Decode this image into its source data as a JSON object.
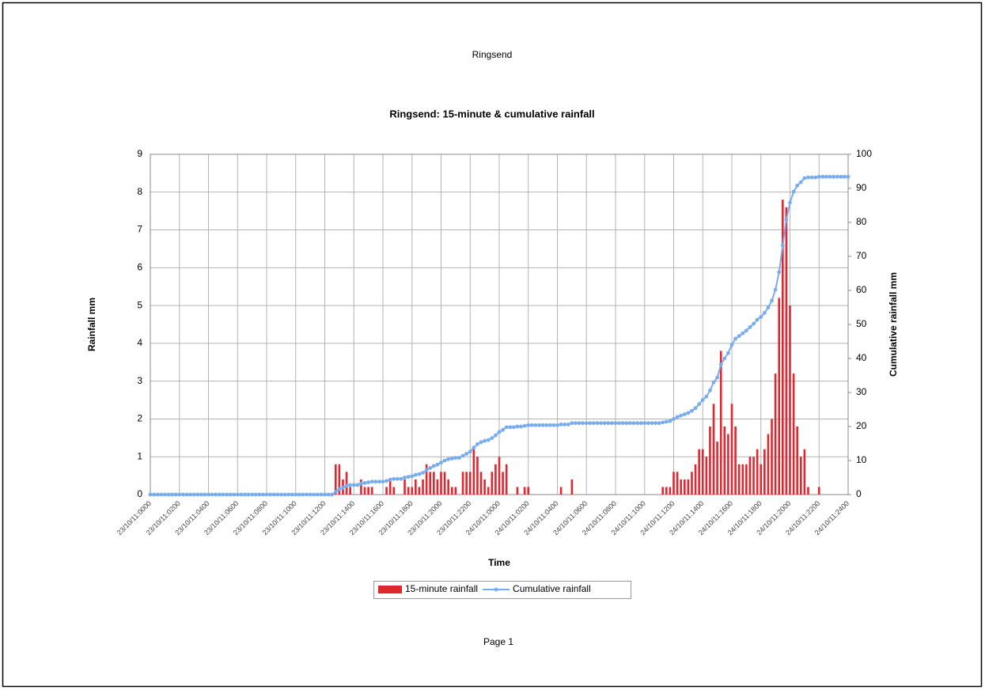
{
  "header": "Ringsend",
  "footer": "Page 1",
  "chart_data": {
    "type": "bar",
    "title": "Ringsend: 15-minute & cumulative rainfall",
    "x_label": "Time",
    "y_label": "Rainfall mm",
    "y2_label": "Cumulative rainfall mm",
    "ylim": [
      0,
      9
    ],
    "yticks": [
      0,
      1,
      2,
      3,
      4,
      5,
      6,
      7,
      8,
      9
    ],
    "y2lim": [
      0,
      100
    ],
    "y2ticks": [
      0,
      10,
      20,
      30,
      40,
      50,
      60,
      70,
      80,
      90,
      100
    ],
    "grid": true,
    "legend": "bottom",
    "categories": [
      "23/10/11:0000",
      null,
      null,
      null,
      null,
      null,
      null,
      null,
      "23/10/11:0200",
      null,
      null,
      null,
      null,
      null,
      null,
      null,
      "23/10/11:0400",
      null,
      null,
      null,
      null,
      null,
      null,
      null,
      "23/10/11:0600",
      null,
      null,
      null,
      null,
      null,
      null,
      null,
      "23/10/11:0800",
      null,
      null,
      null,
      null,
      null,
      null,
      null,
      "23/10/11:1000",
      null,
      null,
      null,
      null,
      null,
      null,
      null,
      "23/10/11:1200",
      null,
      null,
      null,
      null,
      null,
      null,
      null,
      "23/10/11:1400",
      null,
      null,
      null,
      null,
      null,
      null,
      null,
      "23/10/11:1600",
      null,
      null,
      null,
      null,
      null,
      null,
      null,
      "23/10/11:1800",
      null,
      null,
      null,
      null,
      null,
      null,
      null,
      "23/10/11:2000",
      null,
      null,
      null,
      null,
      null,
      null,
      null,
      "23/10/11:2200",
      null,
      null,
      null,
      null,
      null,
      null,
      null,
      "24/10/11:0000",
      null,
      null,
      null,
      null,
      null,
      null,
      null,
      "24/10/11:0200",
      null,
      null,
      null,
      null,
      null,
      null,
      null,
      "24/10/11:0400",
      null,
      null,
      null,
      null,
      null,
      null,
      null,
      "24/10/11:0600",
      null,
      null,
      null,
      null,
      null,
      null,
      null,
      "24/10/11:0800",
      null,
      null,
      null,
      null,
      null,
      null,
      null,
      "24/10/11:1000",
      null,
      null,
      null,
      null,
      null,
      null,
      null,
      "24/10/11:1200",
      null,
      null,
      null,
      null,
      null,
      null,
      null,
      "24/10/11:1400",
      null,
      null,
      null,
      null,
      null,
      null,
      null,
      "24/10/11:1600",
      null,
      null,
      null,
      null,
      null,
      null,
      null,
      "24/10/11:1800",
      null,
      null,
      null,
      null,
      null,
      null,
      null,
      "24/10/11:2000",
      null,
      null,
      null,
      null,
      null,
      null,
      null,
      "24/10/11:2200",
      null,
      null,
      null,
      null,
      null,
      null,
      null,
      "24/10/11:2400"
    ],
    "series": [
      {
        "name": "15-minute rainfall",
        "type": "bar",
        "color": "#e0262f",
        "values": [
          0,
          0,
          0,
          0,
          0,
          0,
          0,
          0,
          0,
          0,
          0,
          0,
          0,
          0,
          0,
          0,
          0,
          0,
          0,
          0,
          0,
          0,
          0,
          0,
          0,
          0,
          0,
          0,
          0,
          0,
          0,
          0,
          0,
          0,
          0,
          0,
          0,
          0,
          0,
          0,
          0,
          0,
          0,
          0,
          0,
          0,
          0,
          0,
          0,
          0,
          0,
          0.8,
          0.8,
          0.4,
          0.6,
          0.2,
          0,
          0,
          0.4,
          0.2,
          0.2,
          0.2,
          0,
          0,
          0,
          0.2,
          0.4,
          0.2,
          0,
          0,
          0.4,
          0.2,
          0.2,
          0.4,
          0.2,
          0.4,
          0.8,
          0.6,
          0.6,
          0.4,
          0.6,
          0.6,
          0.4,
          0.2,
          0.2,
          0,
          0.6,
          0.6,
          0.6,
          1.2,
          1.0,
          0.6,
          0.4,
          0.2,
          0.6,
          0.8,
          1.0,
          0.6,
          0.8,
          0,
          0,
          0.2,
          0,
          0.2,
          0.2,
          0,
          0,
          0,
          0,
          0,
          0,
          0,
          0,
          0.2,
          0,
          0,
          0.4,
          0,
          0,
          0,
          0,
          0,
          0,
          0,
          0,
          0,
          0,
          0,
          0,
          0,
          0,
          0,
          0,
          0,
          0,
          0,
          0,
          0,
          0,
          0,
          0,
          0.2,
          0.2,
          0.2,
          0.6,
          0.6,
          0.4,
          0.4,
          0.4,
          0.6,
          0.8,
          1.2,
          1.2,
          1.0,
          1.8,
          2.4,
          1.4,
          3.8,
          1.8,
          1.6,
          2.4,
          1.8,
          0.8,
          0.8,
          0.8,
          1.0,
          1.0,
          1.2,
          0.8,
          1.2,
          1.6,
          2.0,
          3.2,
          5.2,
          7.8,
          7.6,
          5.0,
          3.2,
          1.8,
          1.0,
          1.2,
          0.2,
          0,
          0,
          0.2,
          0,
          0,
          0,
          0,
          0,
          0,
          0,
          0
        ]
      },
      {
        "name": "Cumulative rainfall",
        "type": "line",
        "axis": "y2",
        "color": "#78acf0",
        "values": [
          0,
          0,
          0,
          0,
          0,
          0,
          0,
          0,
          0,
          0,
          0,
          0,
          0,
          0,
          0,
          0,
          0,
          0,
          0,
          0,
          0,
          0,
          0,
          0,
          0,
          0,
          0,
          0,
          0,
          0,
          0,
          0,
          0,
          0,
          0,
          0,
          0,
          0,
          0,
          0,
          0,
          0,
          0,
          0,
          0,
          0,
          0,
          0,
          0,
          0,
          0,
          0.8,
          1.6,
          2.0,
          2.6,
          2.8,
          2.8,
          2.8,
          3.2,
          3.4,
          3.6,
          3.8,
          3.8,
          3.8,
          3.8,
          4.0,
          4.4,
          4.6,
          4.6,
          4.6,
          5.0,
          5.2,
          5.4,
          5.8,
          6.0,
          6.4,
          7.2,
          7.8,
          8.4,
          8.8,
          9.4,
          10.0,
          10.4,
          10.6,
          10.8,
          10.8,
          11.4,
          12.0,
          12.6,
          13.8,
          14.8,
          15.4,
          15.8,
          16.0,
          16.6,
          17.4,
          18.4,
          19.0,
          19.8,
          19.8,
          19.8,
          20.0,
          20.0,
          20.2,
          20.4,
          20.4,
          20.4,
          20.4,
          20.4,
          20.4,
          20.4,
          20.4,
          20.4,
          20.6,
          20.6,
          20.6,
          21.0,
          21.0,
          21.0,
          21.0,
          21.0,
          21.0,
          21.0,
          21.0,
          21.0,
          21.0,
          21.0,
          21.0,
          21.0,
          21.0,
          21.0,
          21.0,
          21.0,
          21.0,
          21.0,
          21.0,
          21.0,
          21.0,
          21.0,
          21.0,
          21.0,
          21.2,
          21.4,
          21.6,
          22.2,
          22.8,
          23.2,
          23.6,
          24.0,
          24.6,
          25.4,
          26.6,
          27.8,
          28.8,
          30.6,
          33.0,
          34.4,
          38.2,
          40.0,
          41.6,
          44.0,
          45.8,
          46.6,
          47.4,
          48.2,
          49.2,
          50.2,
          51.4,
          52.2,
          53.4,
          55.0,
          57.0,
          60.2,
          65.4,
          73.2,
          80.8,
          85.8,
          89.0,
          90.8,
          91.8,
          93.0,
          93.2,
          93.2,
          93.2,
          93.4,
          93.4,
          93.4,
          93.4,
          93.4,
          93.4,
          93.4,
          93.4,
          93.4
        ]
      }
    ]
  }
}
